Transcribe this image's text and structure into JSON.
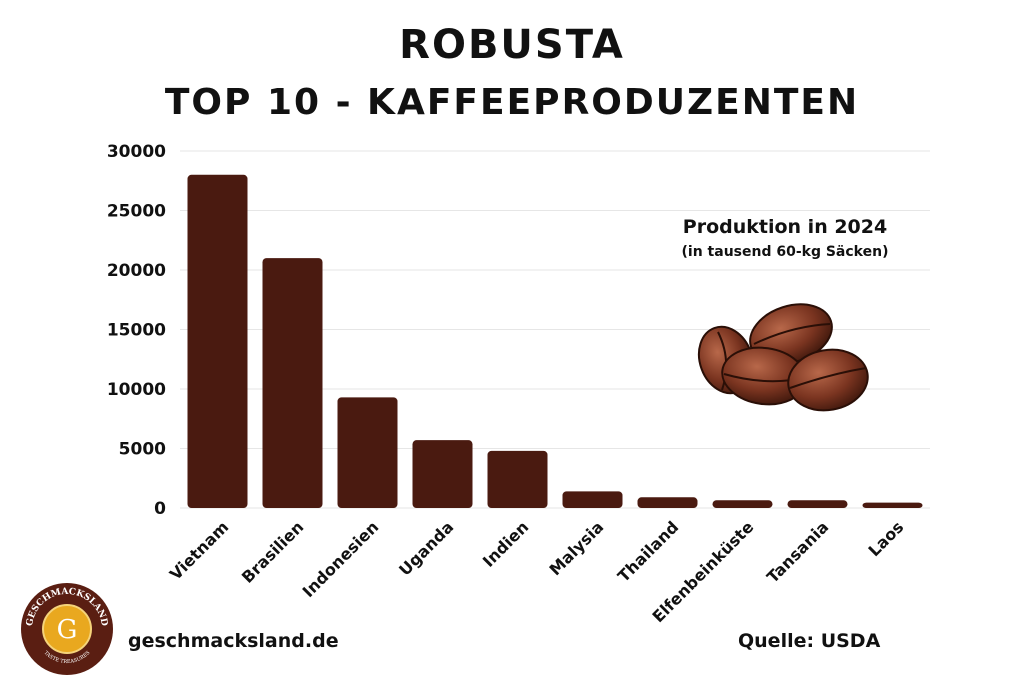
{
  "title_line1": "ROBUSTA",
  "title_line2": "TOP 10 - KAFFEEPRODUZENTEN",
  "annotation": {
    "line1": "Produktion in 2024",
    "line2": "(in tausend 60-kg Säcken)"
  },
  "footer": {
    "website": "geschmacksland.de",
    "source": "Quelle: USDA",
    "logo_text": "GESCHMACKSLAND",
    "logo_subtext": "TASTE TREASURES",
    "logo_letter": "G"
  },
  "colors": {
    "bar": "#4a1a10",
    "grid": "#e6e6e6",
    "logo_ring": "#5a1e12",
    "logo_gold": "#e9a81f"
  },
  "icons": [
    "coffee-beans-icon",
    "geschmacksland-logo"
  ],
  "chart_data": {
    "type": "bar",
    "categories": [
      "Vietnam",
      "Brasilien",
      "Indonesien",
      "Uganda",
      "Indien",
      "Malysia",
      "Thailand",
      "Elfenbeinküste",
      "Tansania",
      "Laos"
    ],
    "values": [
      28000,
      21000,
      9300,
      5700,
      4800,
      1400,
      900,
      650,
      650,
      450
    ],
    "yticks": [
      0,
      5000,
      10000,
      15000,
      20000,
      25000,
      30000
    ],
    "ylim": [
      0,
      30000
    ],
    "grid": true
  }
}
